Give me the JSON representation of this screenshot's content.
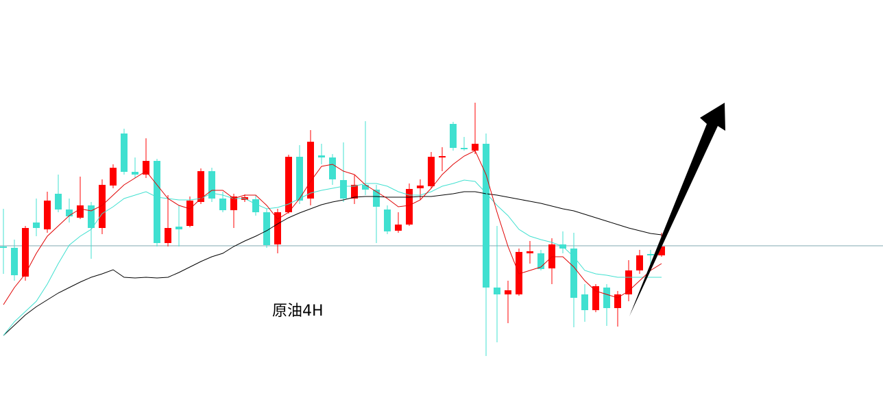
{
  "chart_data": {
    "type": "candlestick",
    "title": "原油4H",
    "ylim": [
      0,
      60
    ],
    "up_color": "#ff0000",
    "down_color": "#40e0d0",
    "open": [
      24.0,
      23.8,
      19.6,
      27.5,
      26.5,
      31.7,
      29.4,
      28.2,
      30.0,
      26.7,
      32.9,
      40.5,
      34.9,
      34.5,
      36.5,
      24.5,
      26.9,
      27.0,
      30.5,
      35.0,
      31.0,
      29.3,
      30.8,
      30.9,
      29.0,
      24.3,
      29.0,
      37.1,
      31.0,
      37.3,
      37.0,
      33.7,
      31.0,
      33.0,
      32.3,
      29.4,
      26.3,
      27.2,
      32.5,
      32.8,
      37.0,
      41.9,
      38.4,
      38.0,
      39.0,
      18.0,
      17.0,
      17.0,
      23.0,
      23.0,
      20.8,
      24.3,
      23.7,
      17.0,
      14.7,
      18.0,
      15.0,
      17.0,
      20.5,
      22.9,
      22.7
    ],
    "high": [
      29.5,
      25.0,
      27.0,
      31.0,
      32.0,
      34.5,
      31.0,
      34.2,
      30.5,
      33.8,
      36.0,
      41.2,
      37.0,
      39.8,
      36.8,
      31.5,
      30.0,
      31.3,
      35.4,
      35.5,
      32.0,
      31.7,
      31.6,
      31.5,
      29.5,
      29.5,
      37.4,
      38.8,
      41.0,
      39.0,
      37.5,
      39.2,
      34.4,
      42.3,
      33.0,
      30.0,
      29.0,
      33.2,
      33.8,
      37.8,
      38.5,
      42.2,
      40.0,
      45.0,
      40.5,
      27.0,
      19.0,
      23.7,
      24.8,
      23.5,
      25.2,
      26.2,
      26.0,
      18.5,
      18.5,
      18.5,
      17.5,
      22.0,
      23.5,
      23.5,
      26.0
    ],
    "low": [
      20.0,
      19.0,
      19.0,
      25.5,
      26.0,
      29.0,
      27.5,
      28.0,
      22.2,
      25.8,
      32.5,
      34.5,
      34.0,
      34.0,
      24.0,
      24.0,
      24.0,
      26.8,
      30.2,
      30.5,
      29.0,
      26.7,
      30.5,
      28.5,
      23.8,
      23.0,
      28.8,
      30.2,
      30.0,
      36.0,
      33.0,
      30.5,
      30.2,
      31.5,
      24.5,
      25.8,
      26.0,
      27.0,
      30.8,
      32.5,
      35.0,
      38.0,
      38.0,
      37.5,
      8.0,
      10.0,
      12.8,
      16.8,
      21.5,
      20.5,
      18.5,
      23.0,
      12.2,
      13.0,
      14.4,
      12.4,
      12.3,
      16.0,
      20.0,
      21.0,
      22.5
    ],
    "close": [
      23.8,
      19.8,
      26.7,
      26.7,
      30.7,
      29.4,
      28.4,
      30.0,
      26.7,
      33.0,
      35.5,
      34.9,
      34.5,
      36.5,
      24.5,
      26.7,
      26.5,
      30.7,
      35.0,
      31.0,
      29.3,
      31.3,
      31.2,
      29.0,
      24.2,
      29.0,
      37.1,
      30.7,
      39.3,
      37.0,
      33.8,
      31.0,
      33.0,
      32.3,
      29.8,
      26.2,
      27.2,
      32.4,
      32.9,
      37.1,
      37.2,
      38.4,
      38.2,
      39.0,
      18.0,
      17.0,
      17.6,
      23.2,
      23.3,
      20.7,
      24.3,
      23.7,
      16.5,
      14.7,
      18.2,
      15.0,
      17.0,
      20.5,
      22.7,
      22.7,
      24.0
    ],
    "series": [
      {
        "color": "#000000",
        "values": [
          11.0,
          12.5,
          14.0,
          15.2,
          16.2,
          17.2,
          18.0,
          18.8,
          19.5,
          20.0,
          20.6,
          19.5,
          19.4,
          19.5,
          19.4,
          19.5,
          20.2,
          21.0,
          21.8,
          22.5,
          23.0,
          24.0,
          24.8,
          25.5,
          26.3,
          27.3,
          28.2,
          28.9,
          29.5,
          30.1,
          30.5,
          30.8,
          31.2,
          31.3,
          31.3,
          31.2,
          31.2,
          31.2,
          31.3,
          31.3,
          31.5,
          31.7,
          32.0,
          32.0,
          31.7,
          31.5,
          31.2,
          30.9,
          30.6,
          30.3,
          29.9,
          29.5,
          29.2,
          28.7,
          28.2,
          27.7,
          27.2,
          26.7,
          26.3,
          25.9,
          25.7
        ]
      },
      {
        "color": "#40e0d0",
        "values": [
          11.0,
          13.0,
          14.5,
          16.0,
          18.5,
          21.5,
          24.2,
          25.5,
          26.5,
          28.8,
          29.8,
          31.0,
          31.5,
          32.0,
          31.2,
          31.0,
          30.8,
          30.8,
          31.0,
          31.8,
          31.5,
          31.0,
          31.0,
          30.2,
          29.5,
          29.7,
          30.2,
          31.0,
          31.8,
          32.2,
          32.5,
          32.8,
          32.8,
          33.2,
          33.2,
          32.8,
          32.0,
          31.5,
          31.5,
          32.0,
          32.8,
          33.2,
          33.7,
          33.5,
          31.8,
          30.0,
          28.5,
          26.5,
          25.5,
          25.0,
          24.6,
          24.0,
          22.5,
          20.5,
          20.0,
          19.8,
          19.5,
          19.5,
          19.5,
          19.5,
          19.5
        ]
      },
      {
        "color": "#e00000",
        "values": [
          15.5,
          18.0,
          20.0,
          23.0,
          25.5,
          27.0,
          28.5,
          29.5,
          29.2,
          30.0,
          31.5,
          33.0,
          34.0,
          35.0,
          33.0,
          31.0,
          30.0,
          29.5,
          31.0,
          32.2,
          32.2,
          31.0,
          31.5,
          31.5,
          30.0,
          28.0,
          29.0,
          31.0,
          33.5,
          35.7,
          36.0,
          35.0,
          34.5,
          33.0,
          32.0,
          31.0,
          29.8,
          30.0,
          30.8,
          32.5,
          34.5,
          36.0,
          37.2,
          38.0,
          34.5,
          29.0,
          24.0,
          20.0,
          20.5,
          21.0,
          22.5,
          22.5,
          21.0,
          19.0,
          17.5,
          17.0,
          16.5,
          17.5,
          19.0,
          20.5,
          21.5
        ]
      }
    ],
    "hline": {
      "value": 24.1,
      "color": "#7fa7b0"
    }
  }
}
